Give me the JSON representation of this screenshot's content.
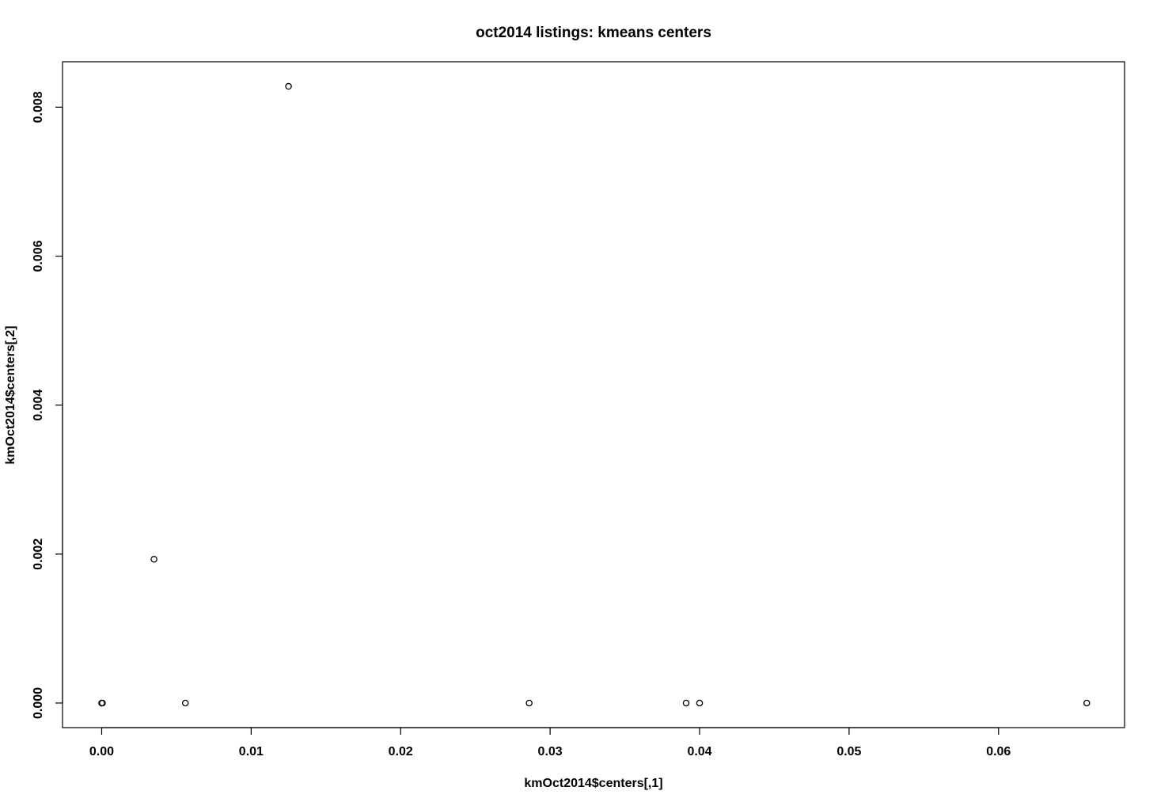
{
  "chart_data": {
    "type": "scatter",
    "title": "oct2014 listings: kmeans centers",
    "xlabel": "kmOct2014$centers[,1]",
    "ylabel": "kmOct2014$centers[,2]",
    "xlim": [
      -0.00262,
      0.06843
    ],
    "ylim": [
      -0.00033,
      0.00861
    ],
    "x_ticks": [
      0.0,
      0.01,
      0.02,
      0.03,
      0.04,
      0.05,
      0.06
    ],
    "x_tick_labels": [
      "0.00",
      "0.01",
      "0.02",
      "0.03",
      "0.04",
      "0.05",
      "0.06"
    ],
    "y_ticks": [
      0.0,
      0.002,
      0.004,
      0.006,
      0.008
    ],
    "y_tick_labels": [
      "0.000",
      "0.002",
      "0.004",
      "0.006",
      "0.008"
    ],
    "grid": false,
    "legend": "none",
    "marker": "open-circle",
    "colors": {
      "marker": "#000000",
      "axis": "#000000",
      "background": "#ffffff"
    },
    "points": [
      {
        "x": 0.0,
        "y": 0.0
      },
      {
        "x": 5e-05,
        "y": 0.0
      },
      {
        "x": 0.0035,
        "y": 0.00193
      },
      {
        "x": 0.0056,
        "y": 0.0
      },
      {
        "x": 0.0125,
        "y": 0.00828
      },
      {
        "x": 0.0286,
        "y": 0.0
      },
      {
        "x": 0.0391,
        "y": 0.0
      },
      {
        "x": 0.04,
        "y": 0.0
      },
      {
        "x": 0.0659,
        "y": 0.0
      }
    ]
  }
}
